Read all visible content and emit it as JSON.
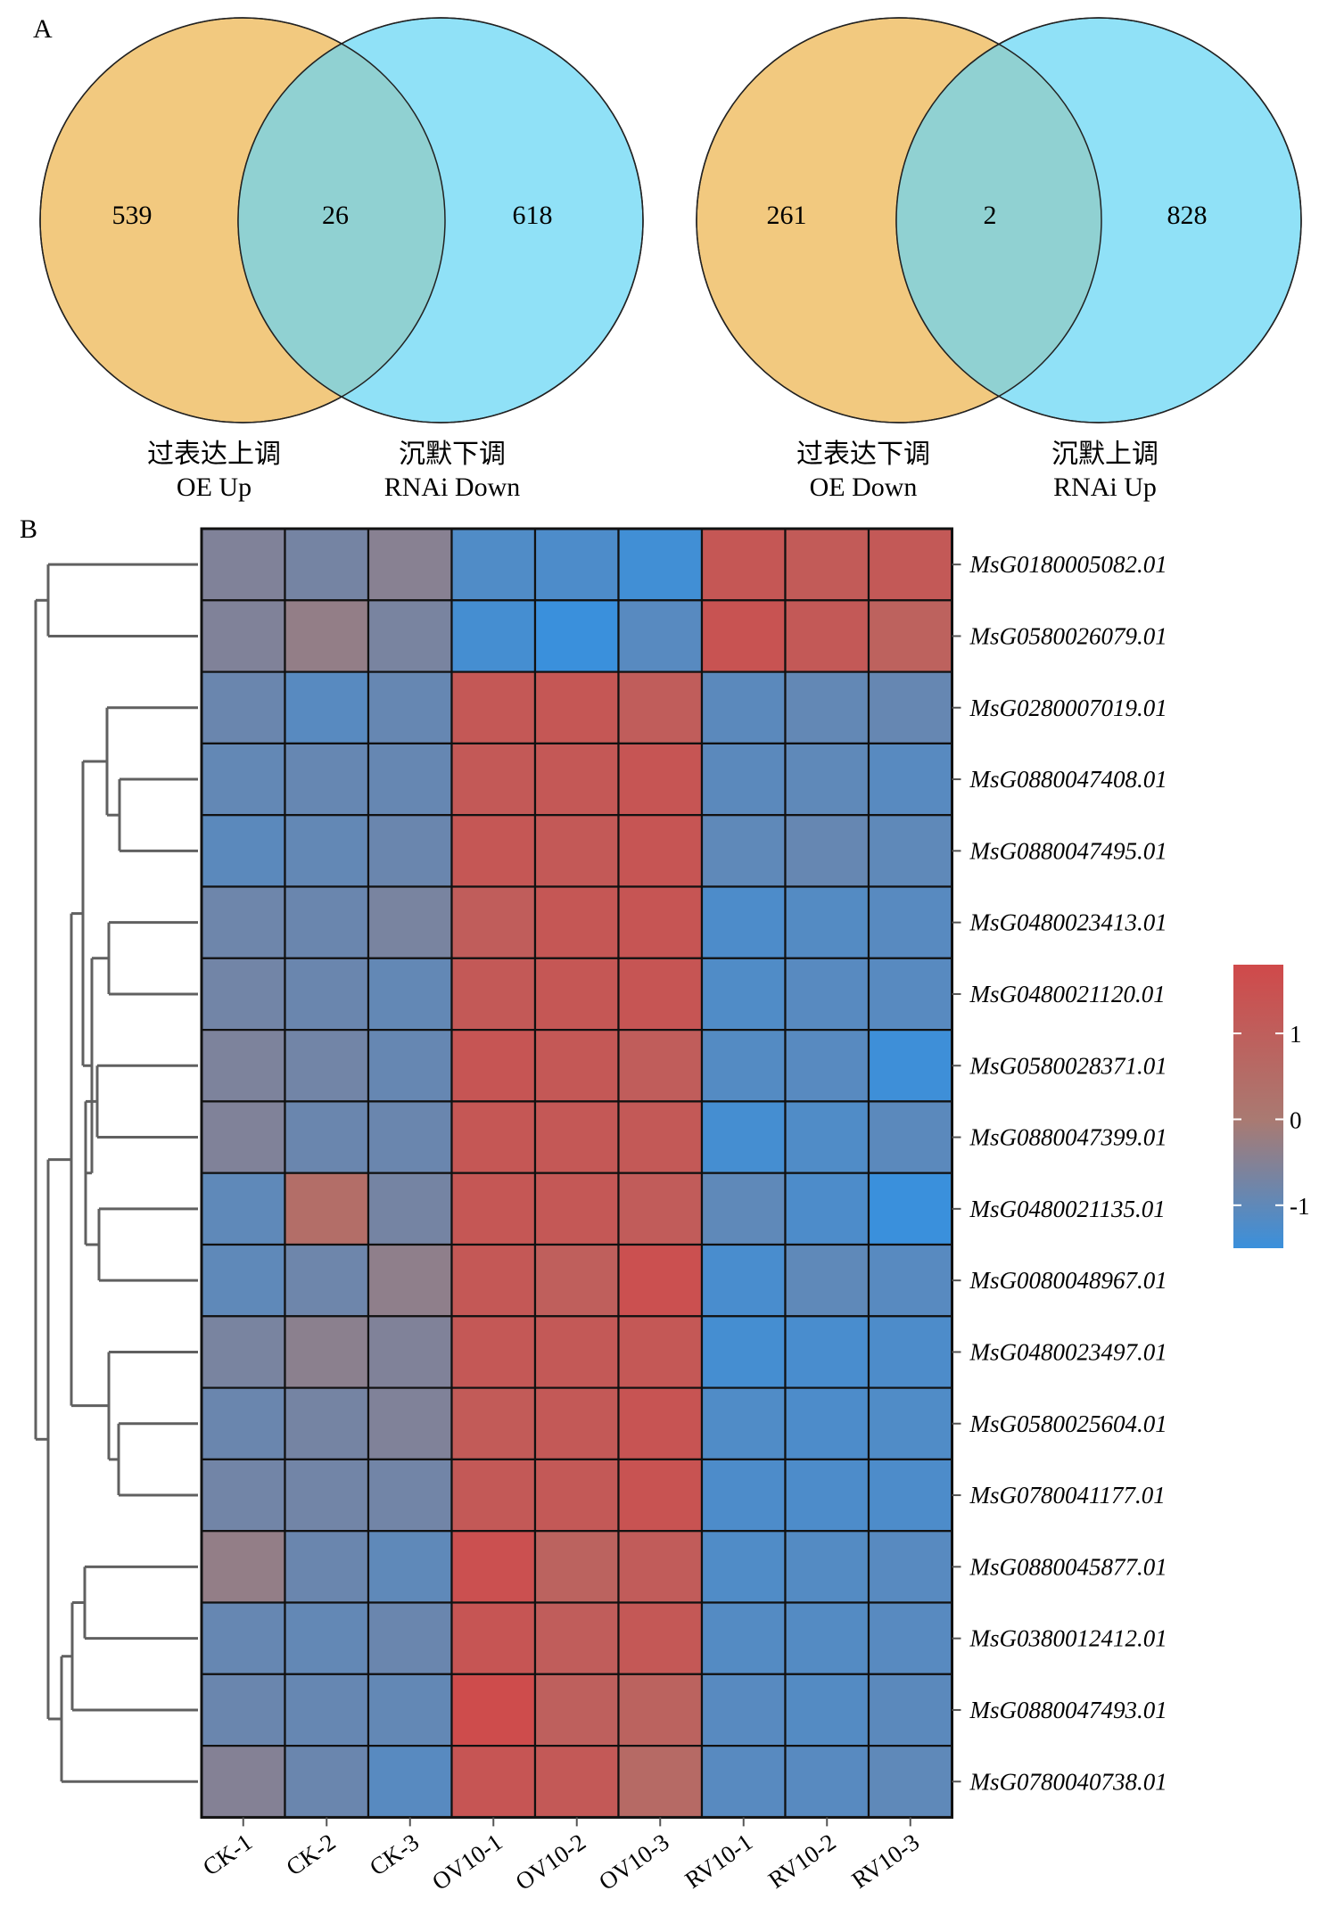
{
  "panel_a_label": "A",
  "panel_b_label": "B",
  "venn": [
    {
      "left_count": "539",
      "overlap_count": "26",
      "right_count": "618",
      "left_label_cn": "过表达上调",
      "left_label_en": "OE Up",
      "right_label_cn": "沉默下调",
      "right_label_en": "RNAi Down"
    },
    {
      "left_count": "261",
      "overlap_count": "2",
      "right_count": "828",
      "left_label_cn": "过表达下调",
      "left_label_en": "OE Down",
      "right_label_cn": "沉默上调",
      "right_label_en": "RNAi Up"
    }
  ],
  "colors": {
    "venn_left": "#f2c97f",
    "venn_right": "#90e1f7",
    "venn_overlap": "#90d1d2",
    "heat_high": "#d0494a",
    "heat_mid": "#a97a72",
    "heat_low": "#3a90dc",
    "dendrogram": "#606060"
  },
  "chart_data": {
    "type": "heatmap",
    "columns": [
      "CK-1",
      "CK-2",
      "CK-3",
      "OV10-1",
      "OV10-2",
      "OV10-3",
      "RV10-1",
      "RV10-2",
      "RV10-3"
    ],
    "rows": [
      "MsG0180005082.01",
      "MsG0580026079.01",
      "MsG0280007019.01",
      "MsG0880047408.01",
      "MsG0880047495.01",
      "MsG0480023413.01",
      "MsG0480021120.01",
      "MsG0580028371.01",
      "MsG0880047399.01",
      "MsG0480021135.01",
      "MsG0080048967.01",
      "MsG0480023497.01",
      "MsG0580025604.01",
      "MsG0780041177.01",
      "MsG0880045877.01",
      "MsG0380012412.01",
      "MsG0880047493.01",
      "MsG0780040738.01"
    ],
    "values": [
      [
        -0.55,
        -0.7,
        -0.45,
        -1.2,
        -1.25,
        -1.4,
        1.3,
        1.15,
        1.2
      ],
      [
        -0.55,
        -0.3,
        -0.65,
        -1.35,
        -1.5,
        -1.1,
        1.45,
        1.2,
        0.9
      ],
      [
        -0.85,
        -1.1,
        -0.9,
        1.25,
        1.3,
        1.05,
        -1.05,
        -0.95,
        -0.9
      ],
      [
        -0.95,
        -0.9,
        -0.9,
        1.2,
        1.25,
        1.35,
        -1.05,
        -1.0,
        -1.1
      ],
      [
        -1.05,
        -0.95,
        -0.85,
        1.3,
        1.2,
        1.35,
        -1.0,
        -0.9,
        -1.0
      ],
      [
        -0.8,
        -0.85,
        -0.65,
        1.05,
        1.3,
        1.35,
        -1.25,
        -1.15,
        -1.1
      ],
      [
        -0.75,
        -0.85,
        -0.95,
        1.2,
        1.3,
        1.35,
        -1.2,
        -1.1,
        -1.1
      ],
      [
        -0.6,
        -0.75,
        -0.9,
        1.35,
        1.25,
        1.05,
        -1.15,
        -1.1,
        -1.45
      ],
      [
        -0.55,
        -0.85,
        -0.85,
        1.3,
        1.25,
        1.2,
        -1.35,
        -1.2,
        -1.05
      ],
      [
        -1.0,
        0.45,
        -0.7,
        1.3,
        1.25,
        1.1,
        -1.0,
        -1.25,
        -1.5
      ],
      [
        -1.0,
        -0.8,
        -0.35,
        1.25,
        1.0,
        1.55,
        -1.3,
        -1.0,
        -1.1
      ],
      [
        -0.65,
        -0.4,
        -0.55,
        1.25,
        1.2,
        1.25,
        -1.35,
        -1.3,
        -1.25
      ],
      [
        -0.85,
        -0.7,
        -0.55,
        1.15,
        1.2,
        1.4,
        -1.2,
        -1.25,
        -1.2
      ],
      [
        -0.75,
        -0.75,
        -0.75,
        1.2,
        1.2,
        1.45,
        -1.25,
        -1.25,
        -1.25
      ],
      [
        -0.3,
        -0.85,
        -1.0,
        1.55,
        0.85,
        1.1,
        -1.2,
        -1.15,
        -1.1
      ],
      [
        -0.9,
        -0.95,
        -0.85,
        1.35,
        1.05,
        1.25,
        -1.15,
        -1.15,
        -1.1
      ],
      [
        -0.85,
        -0.9,
        -0.95,
        1.7,
        0.95,
        0.85,
        -1.1,
        -1.15,
        -1.05
      ],
      [
        -0.5,
        -0.85,
        -1.1,
        1.35,
        1.2,
        0.6,
        -1.1,
        -1.1,
        -1.0
      ]
    ],
    "colorbar": {
      "ticks": [
        1,
        0,
        -1
      ],
      "range": [
        -1.5,
        1.8
      ]
    },
    "row_dendrogram": true
  }
}
